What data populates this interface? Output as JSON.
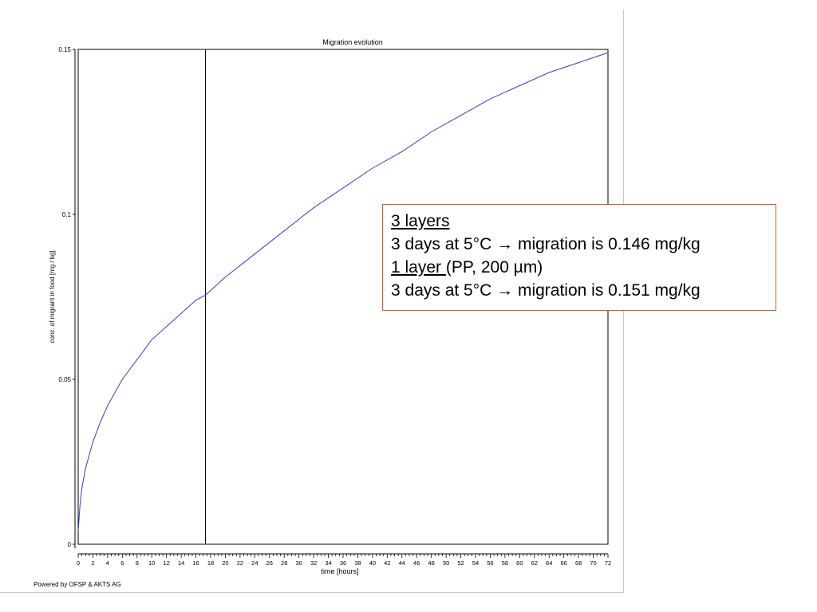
{
  "colors": {
    "curve": "#2a3fd6",
    "axis": "#000000",
    "callout_border": "#e05a2a"
  },
  "chart_data": {
    "type": "line",
    "title": "Migration evolution",
    "xlabel": "time [hours]",
    "ylabel": "conc. of migrant in food [mg / kg]",
    "xlim": [
      0,
      72
    ],
    "ylim": [
      0,
      0.15
    ],
    "x_ticks": [
      0,
      2,
      4,
      6,
      8,
      10,
      12,
      14,
      16,
      18,
      20,
      22,
      24,
      26,
      28,
      30,
      32,
      34,
      36,
      38,
      40,
      42,
      44,
      46,
      48,
      50,
      52,
      54,
      56,
      58,
      60,
      62,
      64,
      66,
      68,
      70,
      72
    ],
    "y_ticks": [
      0,
      0.05,
      0.1,
      0.15
    ],
    "y_tick_labels": [
      "0",
      "0.05",
      "0.1",
      "0.15"
    ],
    "grid": false,
    "vertical_marker_x": 17.3,
    "series": [
      {
        "x": [
          0,
          0.25,
          0.5,
          1,
          2,
          3,
          4,
          6,
          8,
          10,
          12,
          14,
          16,
          17.3,
          20,
          24,
          28,
          32,
          36,
          40,
          44,
          48,
          52,
          56,
          60,
          64,
          68,
          72
        ],
        "values": [
          0.004,
          0.012,
          0.017,
          0.023,
          0.031,
          0.037,
          0.042,
          0.05,
          0.056,
          0.062,
          0.066,
          0.07,
          0.074,
          0.0755,
          0.081,
          0.088,
          0.095,
          0.102,
          0.108,
          0.114,
          0.119,
          0.125,
          0.13,
          0.135,
          0.139,
          0.143,
          0.146,
          0.149
        ]
      }
    ]
  },
  "callout": {
    "line1": "3 layers",
    "line2": "3 days at 5°C → migration is 0.146 mg/kg",
    "line3_underlined": "1 layer ",
    "line3_rest": "(PP, 200 µm)",
    "line4": "3 days at 5°C → migration is 0.151 mg/kg"
  },
  "footer": {
    "powered_by": "Powered by OFSP & AKTS AG"
  }
}
